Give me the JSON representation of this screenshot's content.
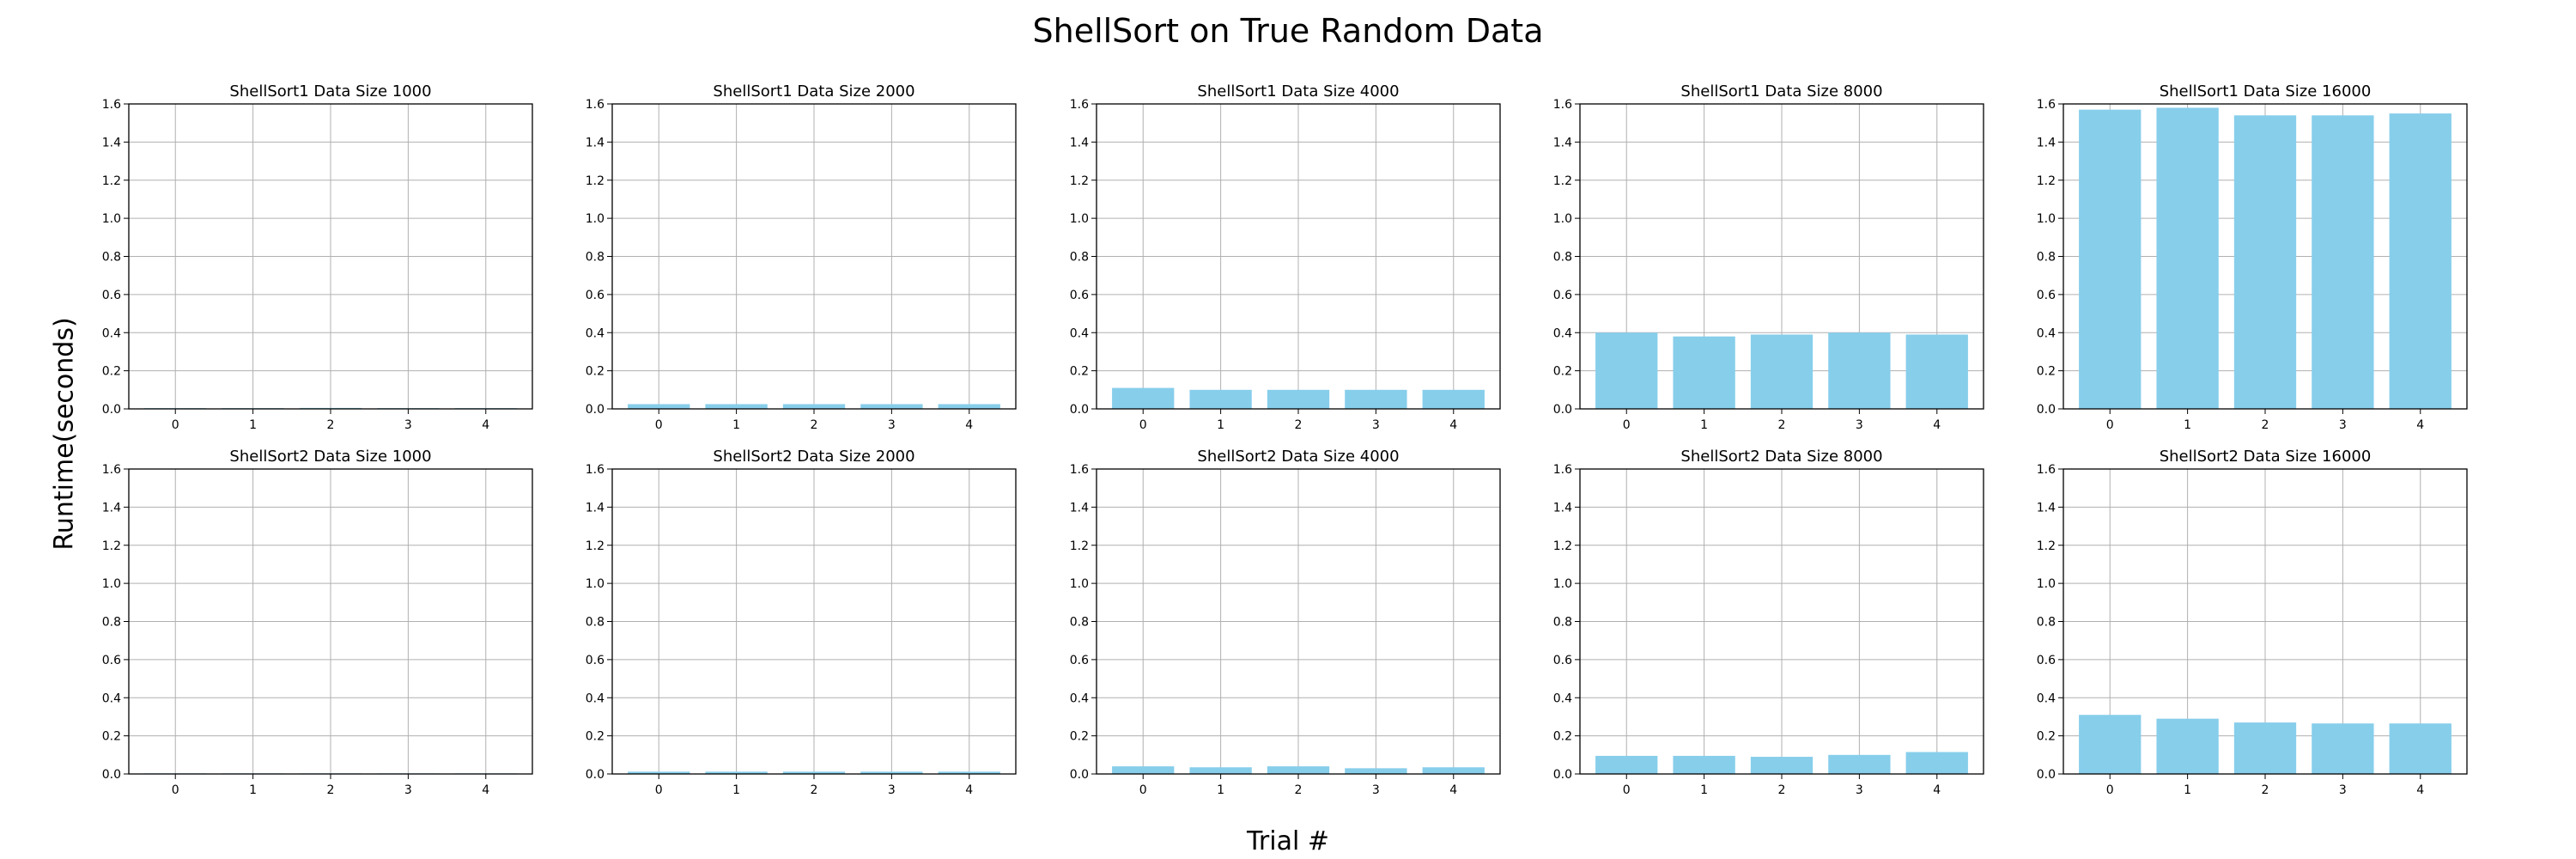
{
  "figure": {
    "title": "ShellSort on True Random Data",
    "xlabel": "Trial #",
    "ylabel": "Runtime(seconds)"
  },
  "colors": {
    "bar": "#87ceeb",
    "grid": "#b0b0b0",
    "axis": "#000000"
  },
  "chart_data": [
    {
      "type": "bar",
      "title": "ShellSort1 Data Size 1000",
      "categories": [
        "0",
        "1",
        "2",
        "3",
        "4"
      ],
      "values": [
        0.004,
        0.004,
        0.005,
        0.004,
        0.004
      ],
      "ylim": [
        0,
        1.6
      ],
      "yticks": [
        "0.0",
        "0.2",
        "0.4",
        "0.6",
        "0.8",
        "1.0",
        "1.2",
        "1.4",
        "1.6"
      ],
      "grid": true
    },
    {
      "type": "bar",
      "title": "ShellSort1 Data Size 2000",
      "categories": [
        "0",
        "1",
        "2",
        "3",
        "4"
      ],
      "values": [
        0.025,
        0.025,
        0.025,
        0.025,
        0.025
      ],
      "ylim": [
        0,
        1.6
      ],
      "yticks": [
        "0.0",
        "0.2",
        "0.4",
        "0.6",
        "0.8",
        "1.0",
        "1.2",
        "1.4",
        "1.6"
      ],
      "grid": true
    },
    {
      "type": "bar",
      "title": "ShellSort1 Data Size 4000",
      "categories": [
        "0",
        "1",
        "2",
        "3",
        "4"
      ],
      "values": [
        0.11,
        0.1,
        0.1,
        0.1,
        0.1
      ],
      "ylim": [
        0,
        1.6
      ],
      "yticks": [
        "0.0",
        "0.2",
        "0.4",
        "0.6",
        "0.8",
        "1.0",
        "1.2",
        "1.4",
        "1.6"
      ],
      "grid": true
    },
    {
      "type": "bar",
      "title": "ShellSort1 Data Size 8000",
      "categories": [
        "0",
        "1",
        "2",
        "3",
        "4"
      ],
      "values": [
        0.4,
        0.38,
        0.39,
        0.4,
        0.39
      ],
      "ylim": [
        0,
        1.6
      ],
      "yticks": [
        "0.0",
        "0.2",
        "0.4",
        "0.6",
        "0.8",
        "1.0",
        "1.2",
        "1.4",
        "1.6"
      ],
      "grid": true
    },
    {
      "type": "bar",
      "title": "ShellSort1 Data Size 16000",
      "categories": [
        "0",
        "1",
        "2",
        "3",
        "4"
      ],
      "values": [
        1.57,
        1.58,
        1.54,
        1.54,
        1.55
      ],
      "ylim": [
        0,
        1.6
      ],
      "yticks": [
        "0.0",
        "0.2",
        "0.4",
        "0.6",
        "0.8",
        "1.0",
        "1.2",
        "1.4",
        "1.6"
      ],
      "grid": true
    },
    {
      "type": "bar",
      "title": "ShellSort2 Data Size 1000",
      "categories": [
        "0",
        "1",
        "2",
        "3",
        "4"
      ],
      "values": [
        0.003,
        0.003,
        0.003,
        0.003,
        0.003
      ],
      "ylim": [
        0,
        1.6
      ],
      "yticks": [
        "0.0",
        "0.2",
        "0.4",
        "0.6",
        "0.8",
        "1.0",
        "1.2",
        "1.4",
        "1.6"
      ],
      "grid": true
    },
    {
      "type": "bar",
      "title": "ShellSort2 Data Size 2000",
      "categories": [
        "0",
        "1",
        "2",
        "3",
        "4"
      ],
      "values": [
        0.012,
        0.012,
        0.012,
        0.012,
        0.012
      ],
      "ylim": [
        0,
        1.6
      ],
      "yticks": [
        "0.0",
        "0.2",
        "0.4",
        "0.6",
        "0.8",
        "1.0",
        "1.2",
        "1.4",
        "1.6"
      ],
      "grid": true
    },
    {
      "type": "bar",
      "title": "ShellSort2 Data Size 4000",
      "categories": [
        "0",
        "1",
        "2",
        "3",
        "4"
      ],
      "values": [
        0.04,
        0.035,
        0.04,
        0.03,
        0.035
      ],
      "ylim": [
        0,
        1.6
      ],
      "yticks": [
        "0.0",
        "0.2",
        "0.4",
        "0.6",
        "0.8",
        "1.0",
        "1.2",
        "1.4",
        "1.6"
      ],
      "grid": true
    },
    {
      "type": "bar",
      "title": "ShellSort2 Data Size 8000",
      "categories": [
        "0",
        "1",
        "2",
        "3",
        "4"
      ],
      "values": [
        0.095,
        0.095,
        0.09,
        0.1,
        0.115
      ],
      "ylim": [
        0,
        1.6
      ],
      "yticks": [
        "0.0",
        "0.2",
        "0.4",
        "0.6",
        "0.8",
        "1.0",
        "1.2",
        "1.4",
        "1.6"
      ],
      "grid": true
    },
    {
      "type": "bar",
      "title": "ShellSort2 Data Size 16000",
      "categories": [
        "0",
        "1",
        "2",
        "3",
        "4"
      ],
      "values": [
        0.31,
        0.29,
        0.27,
        0.265,
        0.265
      ],
      "ylim": [
        0,
        1.6
      ],
      "yticks": [
        "0.0",
        "0.2",
        "0.4",
        "0.6",
        "0.8",
        "1.0",
        "1.2",
        "1.4",
        "1.6"
      ],
      "grid": true
    }
  ]
}
